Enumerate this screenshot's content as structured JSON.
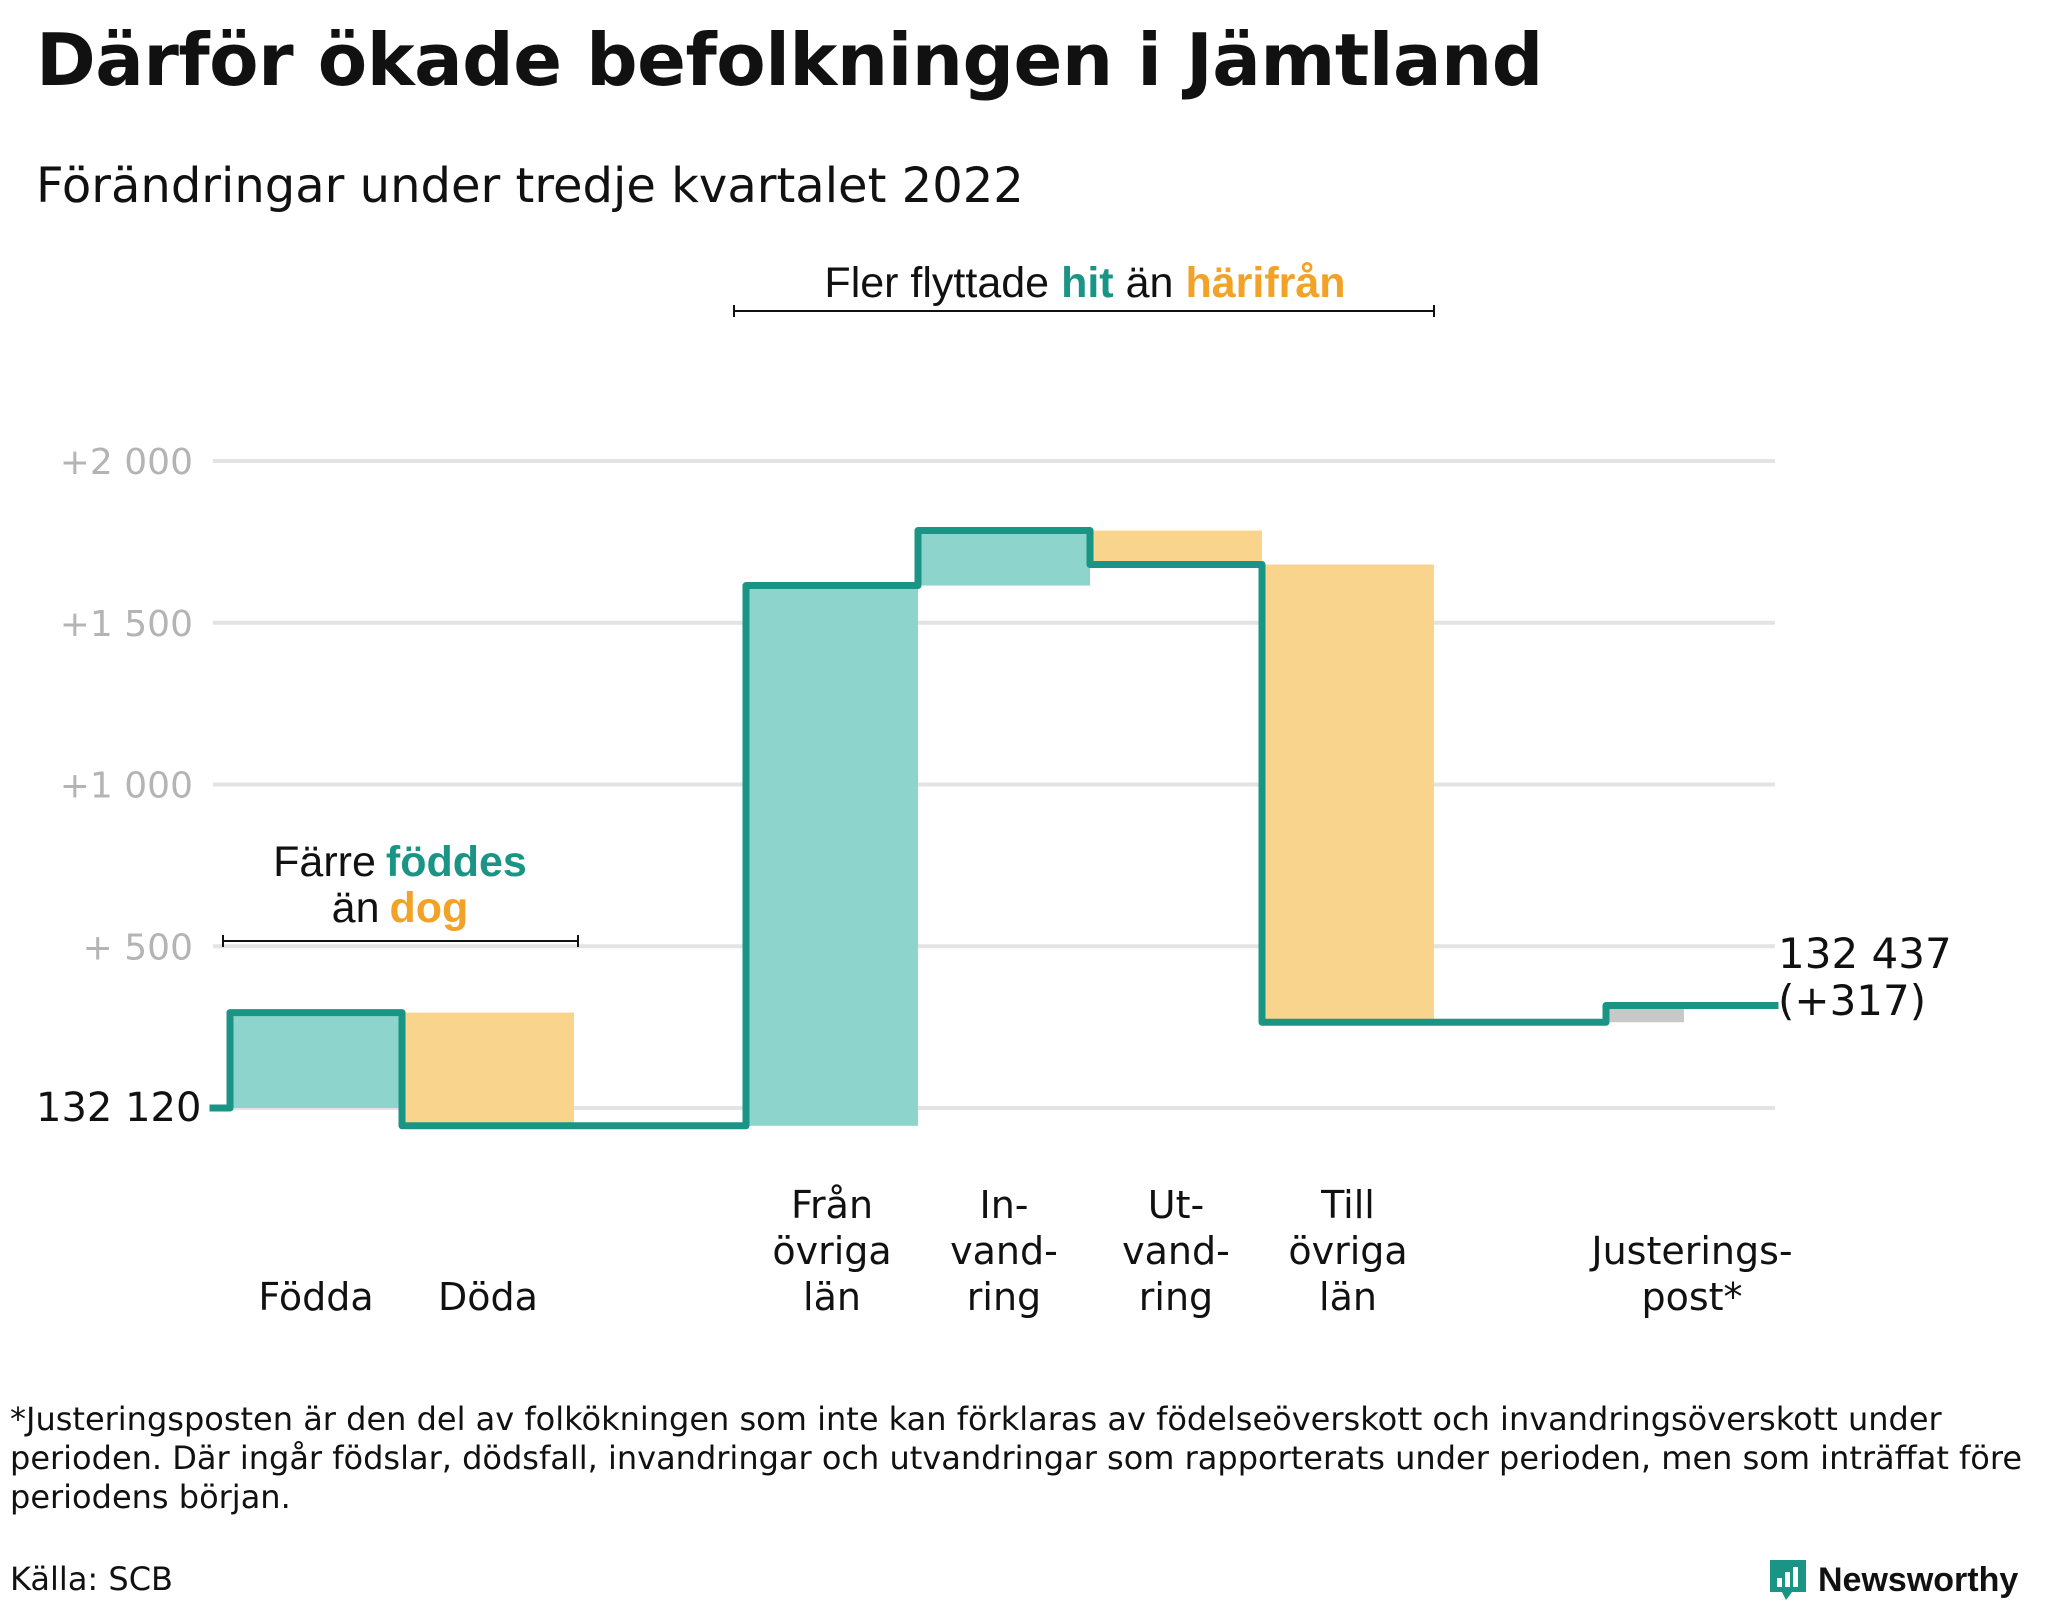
{
  "title": "Därför ökade befolkningen i Jämtland",
  "subtitle": "Förändringar under tredje kvartalet 2022",
  "colors": {
    "teal_line": "#1a9585",
    "teal_fill": "#8dd4cc",
    "orange_fill": "#f9d48c",
    "orange_text": "#f2a227",
    "gray_fill": "#c8c8c8",
    "grid": "#e3e3e3",
    "tick_text": "#b4b4b4"
  },
  "annotations": {
    "births": {
      "line1": "Färre",
      "hl1": "föddes",
      "line2a": "än",
      "hl2": "dog"
    },
    "migration": {
      "text1": "Fler flyttade",
      "hl1": "hit",
      "text2": "än",
      "hl2": "härifrån"
    }
  },
  "chart_data": {
    "type": "waterfall",
    "title": "Därför ökade befolkningen i Jämtland",
    "subtitle": "Förändringar under tredje kvartalet 2022",
    "start_label": "132 120",
    "end_label": "132 437",
    "end_change_label": "(+317)",
    "y_axis": {
      "min": -70,
      "max": 2000,
      "ticks": [
        {
          "value": 0,
          "label": ""
        },
        {
          "value": 500,
          "label": "+ 500"
        },
        {
          "value": 1000,
          "label": "+1 000"
        },
        {
          "value": 1500,
          "label": "+1 500"
        },
        {
          "value": 2000,
          "label": "+2 000"
        }
      ]
    },
    "steps": [
      {
        "label": [
          "Födda"
        ],
        "from": 0,
        "to": 295,
        "kind": "increase"
      },
      {
        "label": [
          "Döda"
        ],
        "from": 295,
        "to": -55,
        "kind": "decrease"
      },
      {
        "label": [],
        "from": -55,
        "to": -55,
        "kind": "none"
      },
      {
        "label": [
          "Från",
          "övriga",
          "län"
        ],
        "from": -55,
        "to": 1615,
        "kind": "increase"
      },
      {
        "label": [
          "In-",
          "vand-",
          "ring"
        ],
        "from": 1615,
        "to": 1785,
        "kind": "increase"
      },
      {
        "label": [
          "Ut-",
          "vand-",
          "ring"
        ],
        "from": 1785,
        "to": 1680,
        "kind": "decrease"
      },
      {
        "label": [
          "Till",
          "övriga",
          "län"
        ],
        "from": 1680,
        "to": 265,
        "kind": "decrease"
      },
      {
        "label": [],
        "from": 265,
        "to": 265,
        "kind": "none"
      },
      {
        "label": [
          "Justerings-",
          "post*"
        ],
        "from": 265,
        "to": 317,
        "kind": "adjustment"
      }
    ]
  },
  "footnote": "*Justeringsposten är den del av folkökningen som inte kan förklaras av födelseöverskott och invandringsöverskott under perioden. Där ingår födslar, dödsfall, invandringar och utvandringar som rapporterats under perioden, men som inträffat före periodens början.",
  "source": "Källa: SCB",
  "brand": {
    "name": "Newsworthy",
    "icon": "newsworthy-logo-icon"
  }
}
